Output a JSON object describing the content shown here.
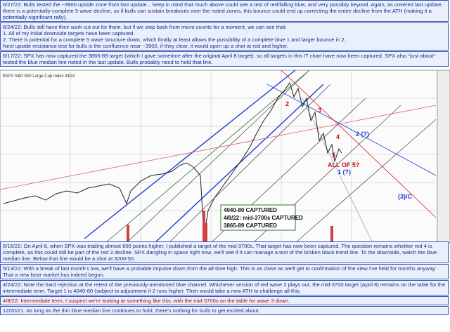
{
  "top_notes": [
    {
      "lines": [
        "6/27/22:  Bulls tested the ~3900 upside zone from last update... keep in mind that much above could see a test of red/falling blue, and very possibly beyond.  Again, as covered last update, there is a potentially-complete 5 wave decline, so if bulls can sustain breakouts over the noted zones, this bounce could end up correcting the entire decline from the ATH (making it a potentially-significant rally)."
      ]
    },
    {
      "lines": [
        "6/24/22:  Bulls still have their work cut out for them, but if we step back from micro counts for a moment, we can see that:",
        "1. All of my initial downside targets have been captured.",
        "2. There is potential for a complete 5 wave structure down, which finally at least allows the possibility of a complete blue 1 and larger bounce in 2.",
        "Next upside resistance test for bulls is the confluence near ~3900, if they clear, it would open up a shot at red and higher."
      ]
    },
    {
      "lines": [
        "6/17/22:  SPX has now captured the 3865-89 target (which I gave sometime after the original April 8 target), so all targets in this IT chart have now been captured.  SPX also *just about* tested the blue median line noted in the last update.  Bulls probably need to hold that line."
      ]
    }
  ],
  "chart": {
    "title": "$SPX S&P 500 Large Cap Index  INDX",
    "captured_box": [
      "4040-80 CAPTURED",
      "4/8/22: mid-3700s CAPTURED",
      "3865-89 CAPTURED"
    ],
    "wave_labels": {
      "red": [
        "2",
        "3",
        "4",
        "5",
        "ALL OF 5?"
      ],
      "blue": [
        "1 (?)",
        "2 (?)",
        "(3)/C"
      ]
    }
  },
  "bottom_notes": [
    {
      "lines": [
        "6/15/22:  On April 8, when SPX was trading almost 800 points higher, I published a target of the mid-3700s.  That target has now been captured.  The question remains whether red 4 is complete, as this could still be part of the red 3 decline.  SPX dangling in space right now, we'll see if it can manage a test of the broken black trend line.  To the downside, watch the blue median line.  Below that line would be a shot at 3200-50."
      ]
    },
    {
      "lines": [
        "5/13/22:  With a break of last month's low, we'll have a probable impulse down from the all-time high.  This is as close as we'll get to confirmation of the view I've held for months anyway:  That a new bear market has indeed begun."
      ]
    },
    {
      "lines": [
        "4/24/22:  Note the hard rejection at the retest of the previously-mentioned blue channel.  Whichever version of red wave 2 plays out, the mid-3700 target (April 8) remains on the table for the intermediate term.  Target 1 is 4040-80 (subject to adjustment if 2 runs higher.  Then would take a new ATH to challenge all this."
      ]
    },
    {
      "lines": [
        "4/8/22:  Intermediate term, I suspect we're looking at something like this, with the mid-3700s on the table for wave 3 down."
      ],
      "color": "#c00000"
    },
    {
      "lines": [
        "12/20/21:  As long as the thin blue median line continues to hold, there's nothing for bulls to get excited about."
      ]
    }
  ]
}
